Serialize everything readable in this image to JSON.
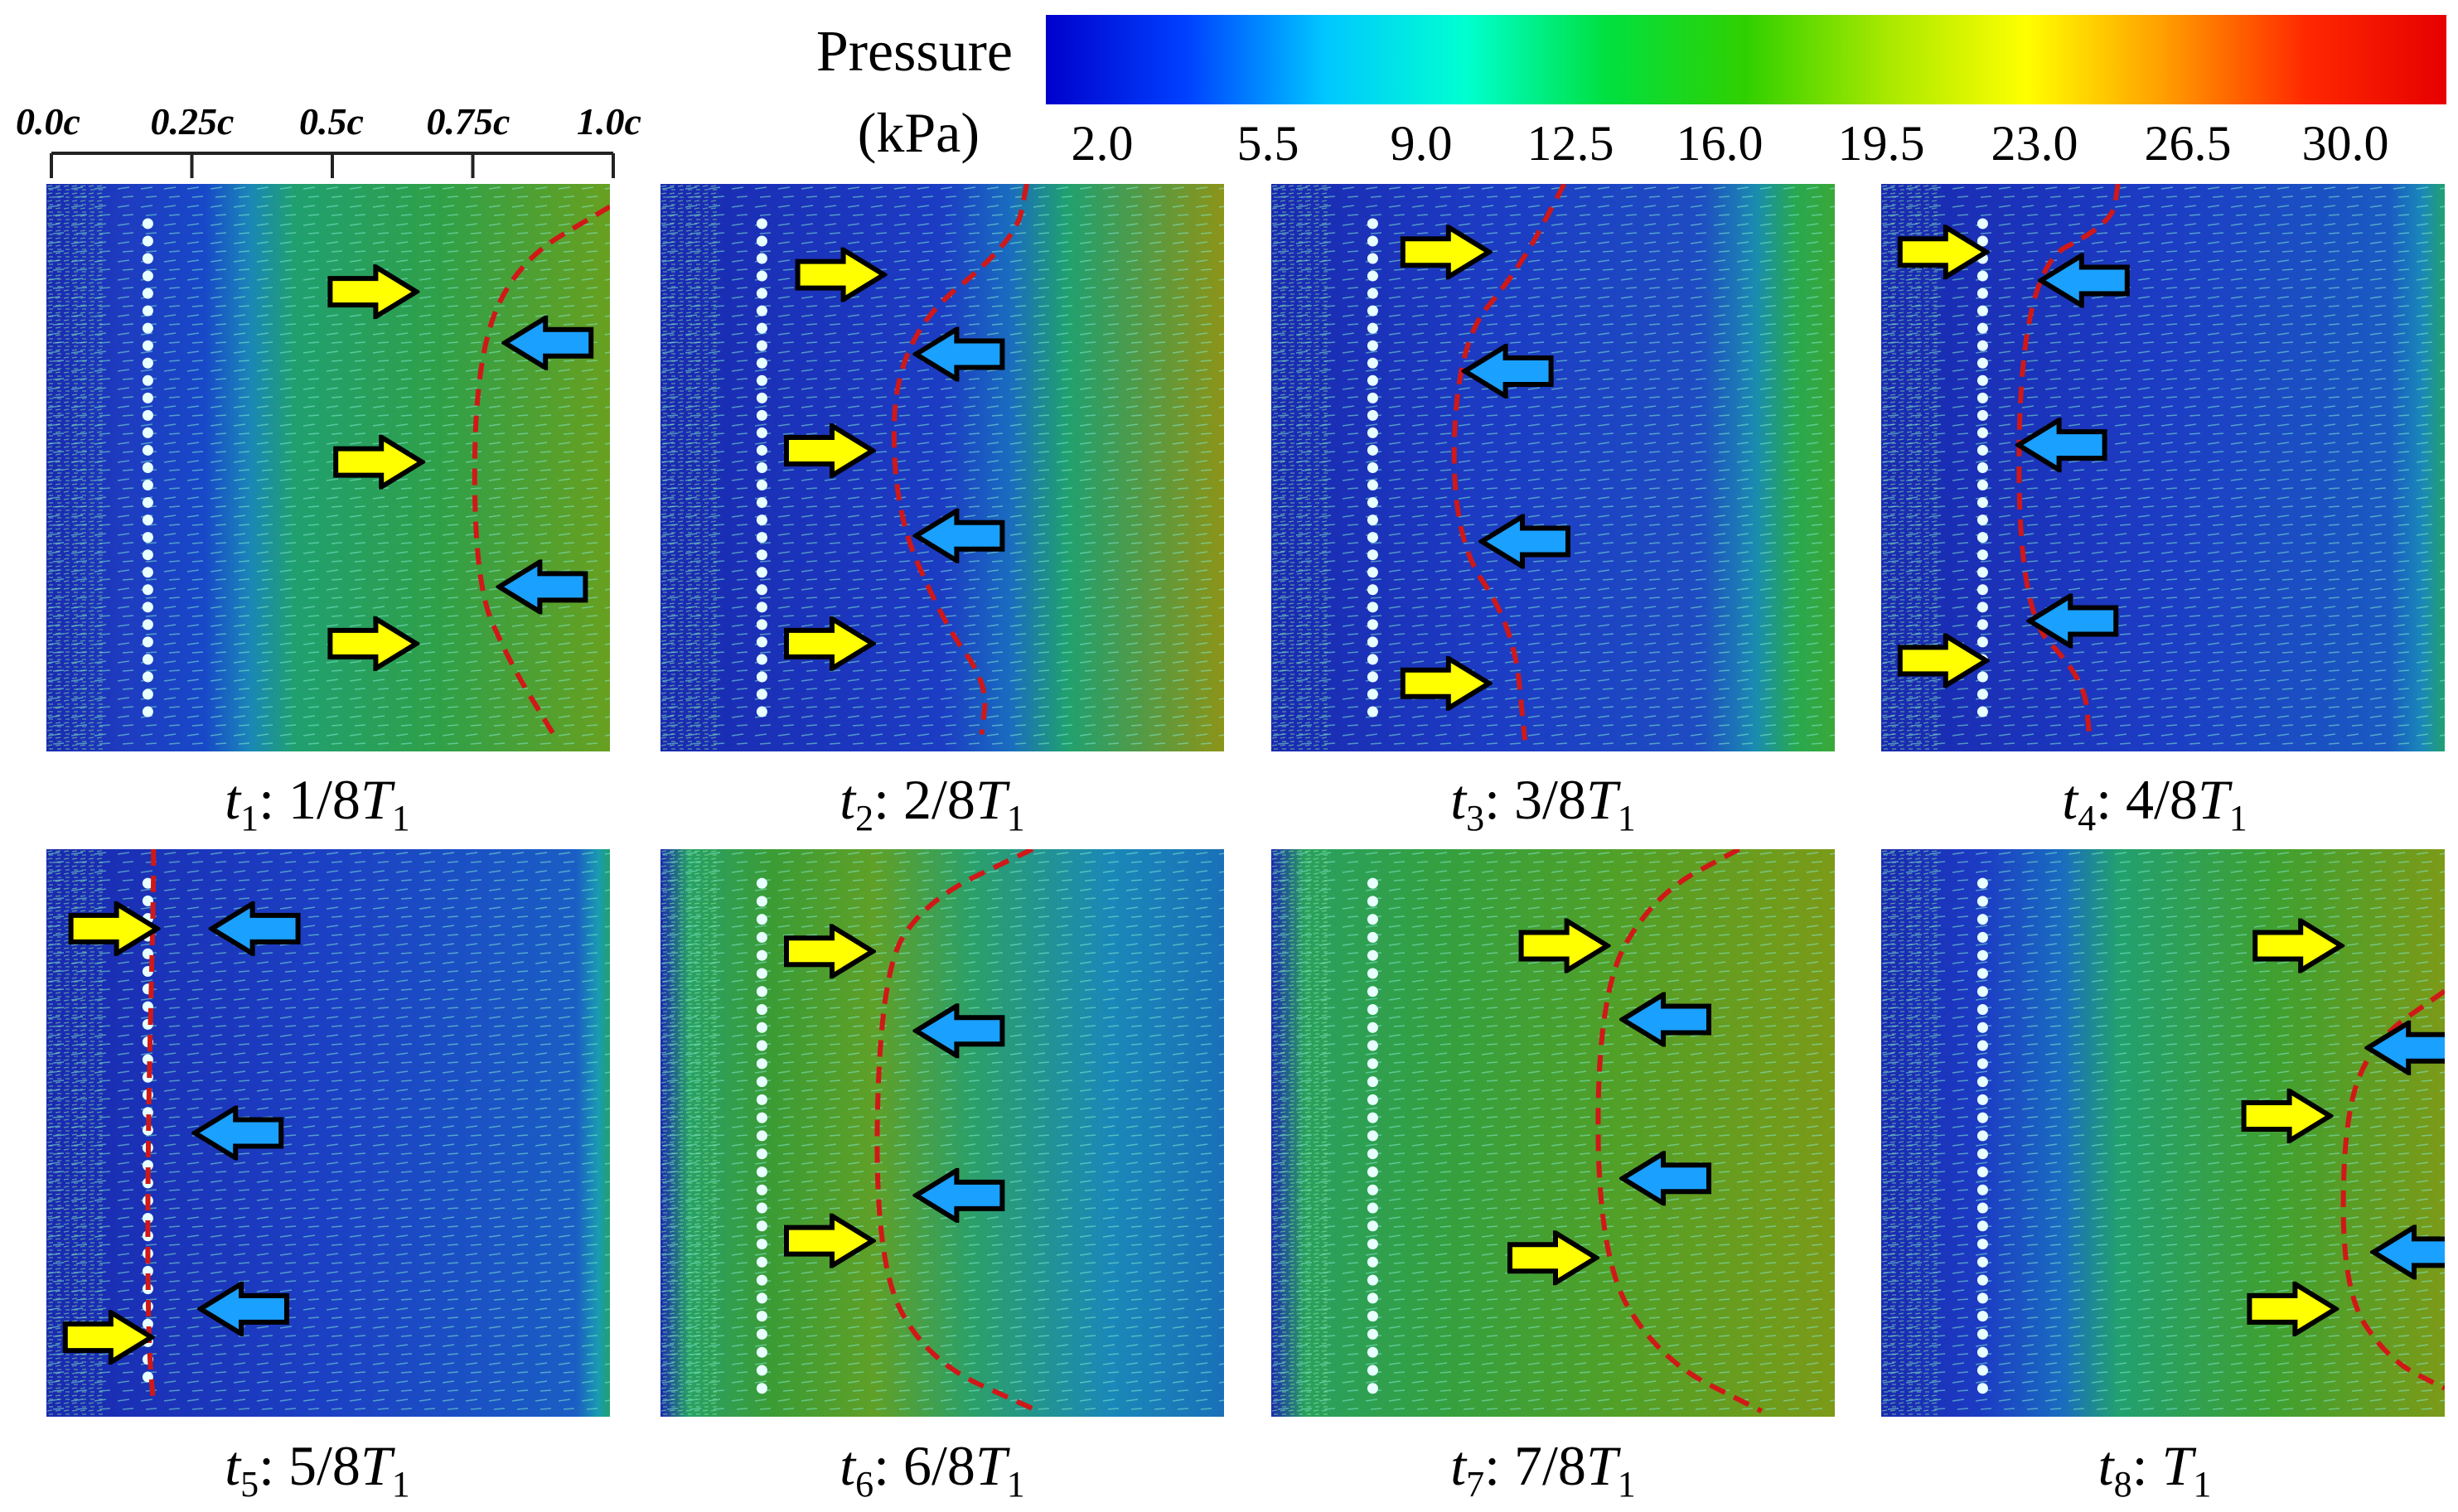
{
  "colorbar": {
    "title_line1": "Pressure",
    "title_line2": "(kPa)",
    "ticks": [
      "2.0",
      "5.5",
      "9.0",
      "12.5",
      "16.0",
      "19.5",
      "23.0",
      "26.5",
      "30.0"
    ],
    "stops": [
      "#0000cc",
      "#0040ff",
      "#00c8ff",
      "#00ffd0",
      "#00e040",
      "#30d000",
      "#a8e800",
      "#ffff00",
      "#ff9c00",
      "#ff2800",
      "#e60000"
    ],
    "min_kpa": 2.0,
    "max_kpa": 30.0
  },
  "chord_scale": {
    "labels": [
      "0.0c",
      "0.25c",
      "0.5c",
      "0.75c",
      "1.0c"
    ],
    "positions": [
      0.0,
      0.25,
      0.5,
      0.75,
      1.0
    ]
  },
  "panels": [
    {
      "time": "t",
      "sub": "1",
      "phase": "1/8",
      "period": "T",
      "period_sub": "1"
    },
    {
      "time": "t",
      "sub": "2",
      "phase": "2/8",
      "period": "T",
      "period_sub": "1"
    },
    {
      "time": "t",
      "sub": "3",
      "phase": "3/8",
      "period": "T",
      "period_sub": "1"
    },
    {
      "time": "t",
      "sub": "4",
      "phase": "4/8",
      "period": "T",
      "period_sub": "1"
    },
    {
      "time": "t",
      "sub": "5",
      "phase": "5/8",
      "period": "T",
      "period_sub": "1"
    },
    {
      "time": "t",
      "sub": "6",
      "phase": "6/8",
      "period": "T",
      "period_sub": "1"
    },
    {
      "time": "t",
      "sub": "7",
      "phase": "7/8",
      "period": "T",
      "period_sub": "1"
    },
    {
      "time": "t",
      "sub": "8",
      "phase": "",
      "period": "T",
      "period_sub": "1"
    }
  ],
  "arrow_colors": {
    "forward": "#ffff00",
    "reverse": "#1aa0ff",
    "front": "#d01818",
    "dots": "#e8ffff"
  }
}
